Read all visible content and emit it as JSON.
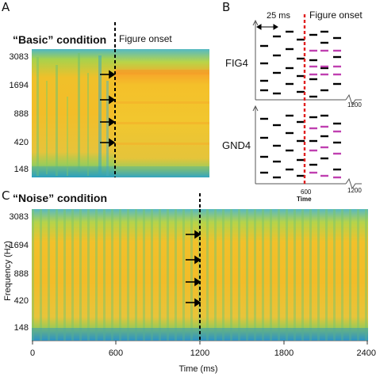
{
  "panel_a": {
    "letter": "A",
    "title": "“Basic” condition",
    "onset_label": "Figure onset",
    "y_ticks": [
      "3083",
      "1694",
      "888",
      "420",
      "148"
    ]
  },
  "panel_b": {
    "letter": "B",
    "onset_label": "Figure onset",
    "duration_label": "25 ms",
    "stim_top": "FIG4",
    "stim_bottom": "GND4",
    "tick_600": "600",
    "tick_1200_top": "1200",
    "tick_1200_bottom": "1200",
    "time_label": "Time"
  },
  "panel_c": {
    "letter": "C",
    "title": "“Noise” condition",
    "y_ticks": [
      "3083",
      "1694",
      "888",
      "420",
      "148"
    ],
    "x_ticks": [
      "0",
      "600",
      "1200",
      "1800",
      "2400"
    ],
    "ylabel": "Frequency (Hz)",
    "xlabel": "Time (ms)"
  },
  "colors": {
    "spec_yellow": "#f2c12a",
    "spec_orange": "#f0ad2a",
    "spec_green": "#8ccb55",
    "spec_blue": "#1d9bb8",
    "onset_black": "#000000",
    "onset_red": "#e02020",
    "chord_magenta": "#c040b0"
  }
}
